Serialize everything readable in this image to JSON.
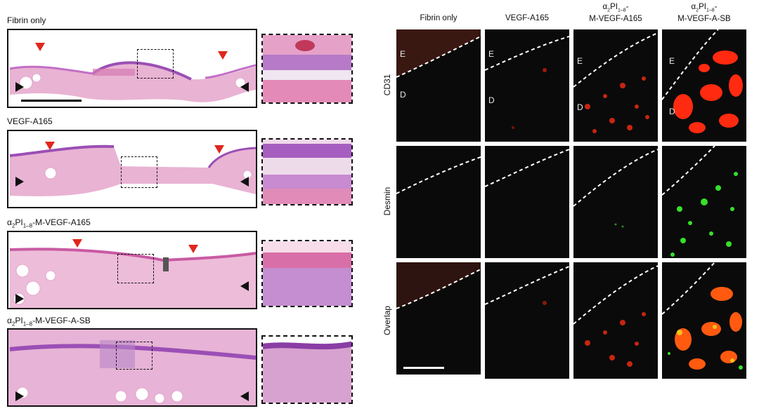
{
  "left": {
    "rows": [
      {
        "label_pre": "",
        "label_sub": "",
        "label_post": "Fibrin only"
      },
      {
        "label_pre": "",
        "label_sub": "",
        "label_post": "VEGF-A165"
      },
      {
        "label_pre": "α",
        "label_sub": "2",
        "label_mid": "PI",
        "label_sub2": "1–8",
        "label_post": "-M-VEGF-A165"
      },
      {
        "label_pre": "α",
        "label_sub": "2",
        "label_mid": "PI",
        "label_sub2": "1–8",
        "label_post": "-M-VEGF-A-SB"
      }
    ]
  },
  "right": {
    "columns": [
      {
        "line1": "Fibrin only",
        "line2": ""
      },
      {
        "line1": "VEGF-A165",
        "line2": ""
      },
      {
        "line1_pre": "α",
        "line1_sub": "2",
        "line1_mid": "PI",
        "line1_sub2": "1–8",
        "line1_post": "-",
        "line2": "M-VEGF-A165"
      },
      {
        "line1_pre": "α",
        "line1_sub": "2",
        "line1_mid": "PI",
        "line1_sub2": "1–8",
        "line1_post": "-",
        "line2": "M-VEGF-A-SB"
      }
    ],
    "rows": [
      "CD31",
      "Desmin",
      "Overlap"
    ],
    "layer_labels": {
      "epidermis": "E",
      "dermis": "D"
    }
  },
  "colors": {
    "red_arrow": "#e1261c",
    "he_pink": "#e7a2c8",
    "he_purple": "#8a4aa6",
    "cd31": "#ff2a10",
    "desmin": "#36e02a"
  }
}
